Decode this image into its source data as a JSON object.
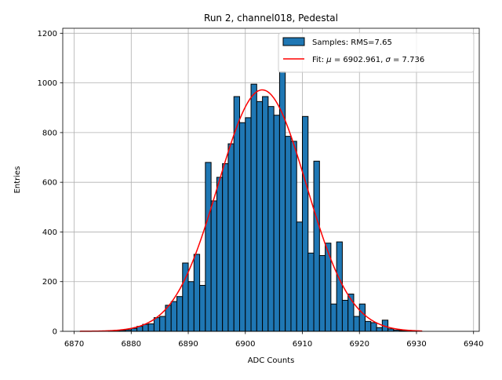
{
  "chart_data": {
    "type": "bar",
    "title": "Run 2, channel018, Pedestal",
    "xlabel": "ADC Counts",
    "ylabel": "Entries",
    "xlim": [
      6868,
      6941
    ],
    "ylim": [
      0,
      1220
    ],
    "xticks": [
      6870,
      6880,
      6890,
      6900,
      6910,
      6920,
      6930,
      6940
    ],
    "yticks": [
      0,
      200,
      400,
      600,
      800,
      1000,
      1200
    ],
    "grid": true,
    "legend_position": "top-right",
    "legend": {
      "hist_label": "Samples: RMS=7.65",
      "fit_prefix": "Fit: ",
      "fit_mu_symbol": "μ",
      "fit_mu_value": " = 6902.961, ",
      "fit_sigma_symbol": "σ",
      "fit_sigma_value": " = 7.736"
    },
    "histogram": {
      "bin_width": 1,
      "bin_starts": [
        6876,
        6877,
        6878,
        6879,
        6880,
        6881,
        6882,
        6883,
        6884,
        6885,
        6886,
        6887,
        6888,
        6889,
        6890,
        6891,
        6892,
        6893,
        6894,
        6895,
        6896,
        6897,
        6898,
        6899,
        6900,
        6901,
        6902,
        6903,
        6904,
        6905,
        6906,
        6907,
        6908,
        6909,
        6910,
        6911,
        6912,
        6913,
        6914,
        6915,
        6916,
        6917,
        6918,
        6919,
        6920,
        6921,
        6922,
        6923,
        6924,
        6925,
        6926,
        6927,
        6928,
        6929
      ],
      "counts": [
        2,
        3,
        4,
        6,
        12,
        20,
        28,
        30,
        55,
        60,
        105,
        120,
        140,
        275,
        200,
        310,
        185,
        680,
        525,
        620,
        675,
        755,
        945,
        840,
        860,
        995,
        925,
        945,
        905,
        870,
        1045,
        785,
        765,
        440,
        865,
        315,
        685,
        305,
        355,
        110,
        360,
        125,
        150,
        60,
        110,
        40,
        35,
        15,
        45,
        10,
        5,
        3,
        2,
        1
      ],
      "color": "#1f77b4",
      "edge_color": "#000000"
    },
    "fit": {
      "mu": 6902.961,
      "sigma": 7.736,
      "amplitude": 972,
      "x_range": [
        6871,
        6931
      ],
      "color": "#ff0000"
    }
  }
}
